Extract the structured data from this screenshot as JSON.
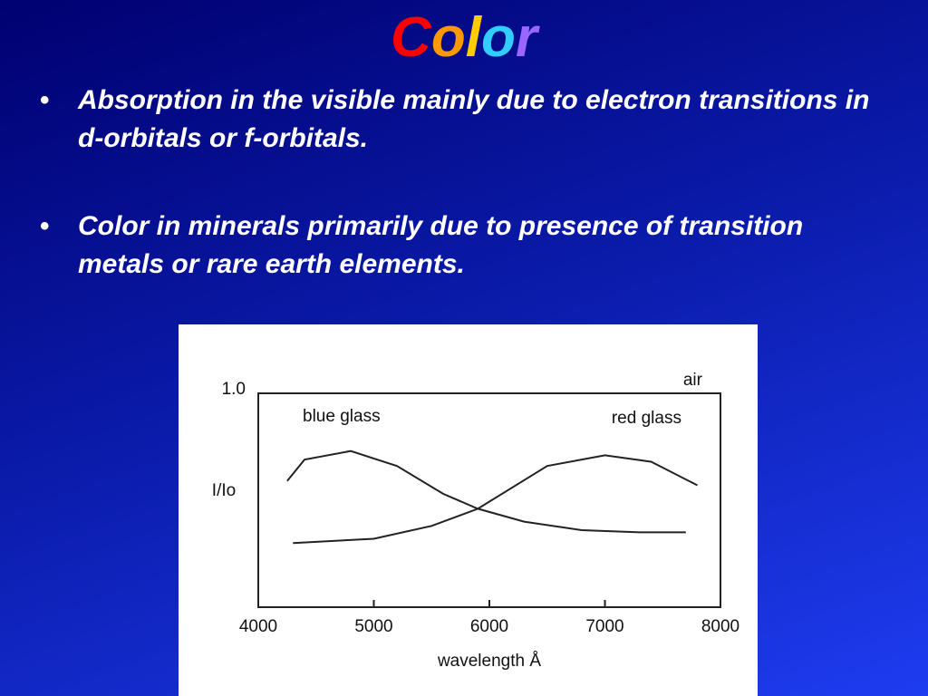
{
  "title": {
    "letters": [
      {
        "text": "C",
        "color": "#ff0000"
      },
      {
        "text": "o",
        "color": "#ff9900"
      },
      {
        "text": "l",
        "color": "#ffcc00"
      },
      {
        "text": "o",
        "color": "#33ccff"
      },
      {
        "text": "r",
        "color": "#9966ff"
      }
    ]
  },
  "bullets": [
    "Absorption in the visible mainly due to electron transitions in d-orbitals or f-orbitals.",
    "Color in minerals primarily due to presence of transition metals or rare earth elements."
  ],
  "chart_data": {
    "type": "line",
    "xlabel": "wavelength Å",
    "ylabel": "I/Io",
    "xlim": [
      4000,
      8000
    ],
    "xticks": [
      4000,
      5000,
      6000,
      7000,
      8000
    ],
    "ylim": [
      0,
      1
    ],
    "yticks": [
      {
        "value": 1,
        "label": "1.0"
      }
    ],
    "series": [
      {
        "name": "air",
        "color": "#222222",
        "x": [
          4000,
          8000
        ],
        "values": [
          1,
          1
        ]
      },
      {
        "name": "blue glass",
        "color": "#222222",
        "x": [
          4250,
          4400,
          4800,
          5200,
          5600,
          5900,
          6300,
          6800,
          7300,
          7700
        ],
        "values": [
          0.59,
          0.69,
          0.73,
          0.66,
          0.53,
          0.46,
          0.4,
          0.36,
          0.35,
          0.35
        ]
      },
      {
        "name": "red glass",
        "color": "#222222",
        "x": [
          4300,
          5000,
          5500,
          5900,
          6500,
          7000,
          7400,
          7800
        ],
        "values": [
          0.3,
          0.32,
          0.38,
          0.46,
          0.66,
          0.71,
          0.68,
          0.57
        ]
      }
    ]
  }
}
